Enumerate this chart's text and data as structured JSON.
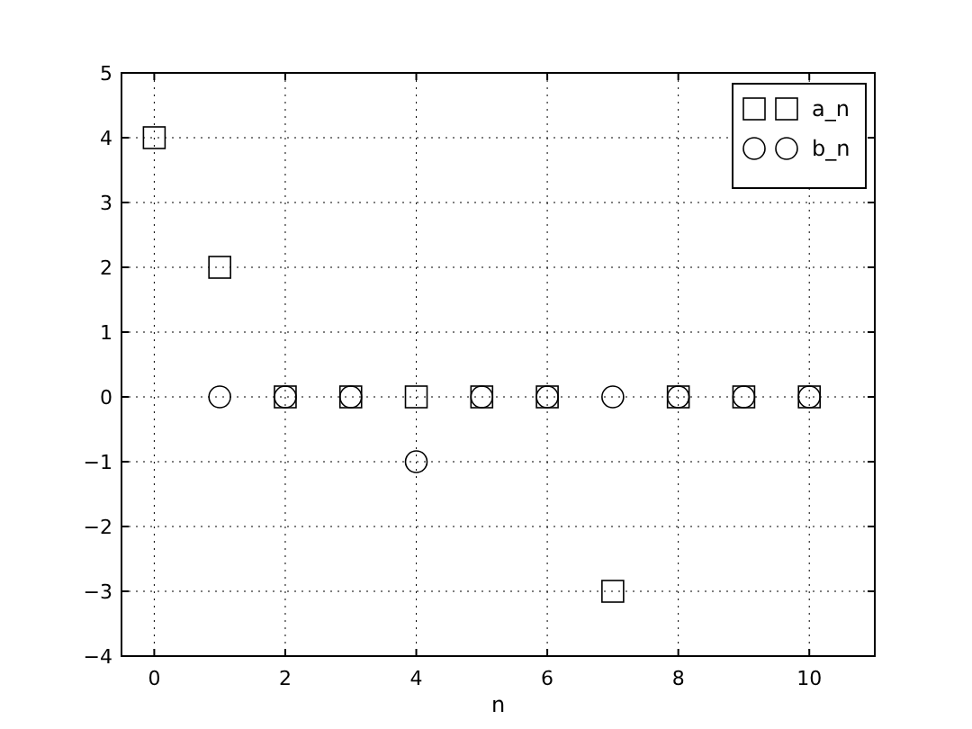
{
  "chart_data": {
    "type": "scatter",
    "xlabel": "n",
    "xlim": [
      -0.5,
      11
    ],
    "ylim": [
      -4,
      5
    ],
    "xticks": [
      0,
      2,
      4,
      6,
      8,
      10
    ],
    "yticks": [
      -4,
      -3,
      -2,
      -1,
      0,
      1,
      2,
      3,
      4,
      5
    ],
    "grid": true,
    "legend": "top right",
    "series": [
      {
        "name": "a_n",
        "color": "#000000",
        "marker": "square",
        "x": [
          0,
          1,
          2,
          3,
          4,
          5,
          6,
          7,
          8,
          9,
          10
        ],
        "values": [
          4,
          2,
          0,
          0,
          0,
          0,
          0,
          -3,
          0,
          0,
          0
        ]
      },
      {
        "name": "b_n",
        "color": "#000000",
        "marker": "circle",
        "x": [
          1,
          2,
          3,
          4,
          5,
          6,
          7,
          8,
          9,
          10
        ],
        "values": [
          0,
          0,
          0,
          -1,
          0,
          0,
          0,
          0,
          0,
          0
        ]
      }
    ]
  }
}
